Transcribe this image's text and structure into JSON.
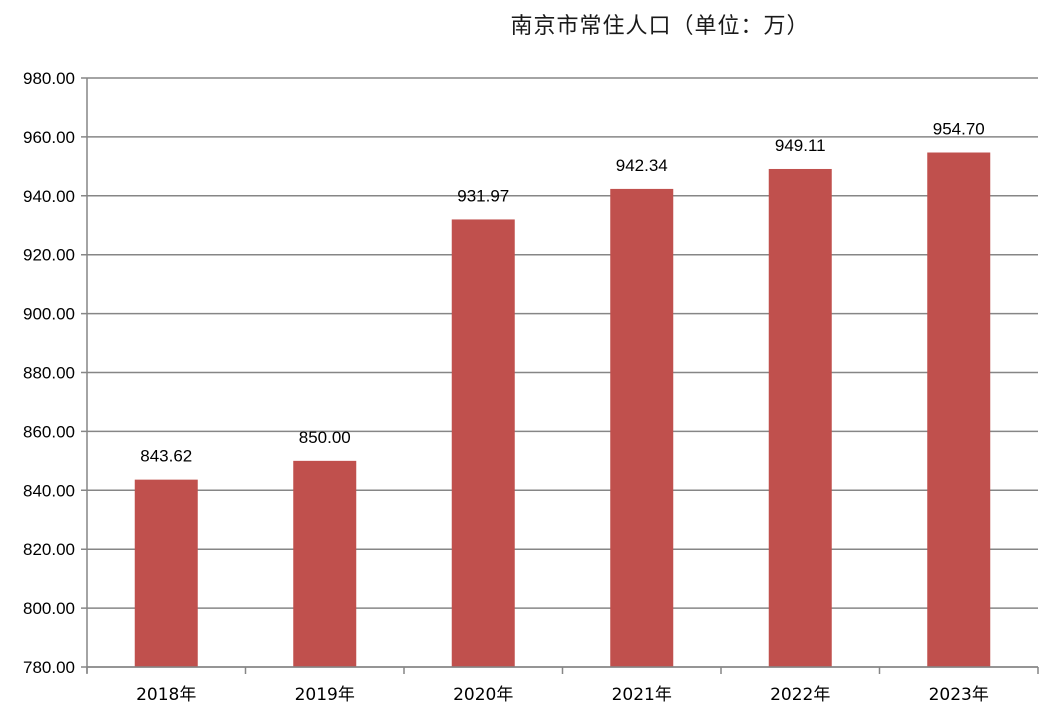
{
  "chart_data": {
    "type": "bar",
    "title": "南京市常住人口（单位：万）",
    "categories": [
      "2018年",
      "2019年",
      "2020年",
      "2021年",
      "2022年",
      "2023年"
    ],
    "values": [
      843.62,
      850.0,
      931.97,
      942.34,
      949.11,
      954.7
    ],
    "data_labels": [
      "843.62",
      "850.00",
      "931.97",
      "942.34",
      "949.11",
      "954.70"
    ],
    "y_ticks": [
      "780.00",
      "800.00",
      "820.00",
      "840.00",
      "860.00",
      "880.00",
      "900.00",
      "920.00",
      "940.00",
      "960.00",
      "980.00"
    ],
    "ylim": [
      780,
      980
    ],
    "grid": true,
    "legend": "none",
    "bar_color": "#C0504D",
    "grid_color": "#868686"
  }
}
